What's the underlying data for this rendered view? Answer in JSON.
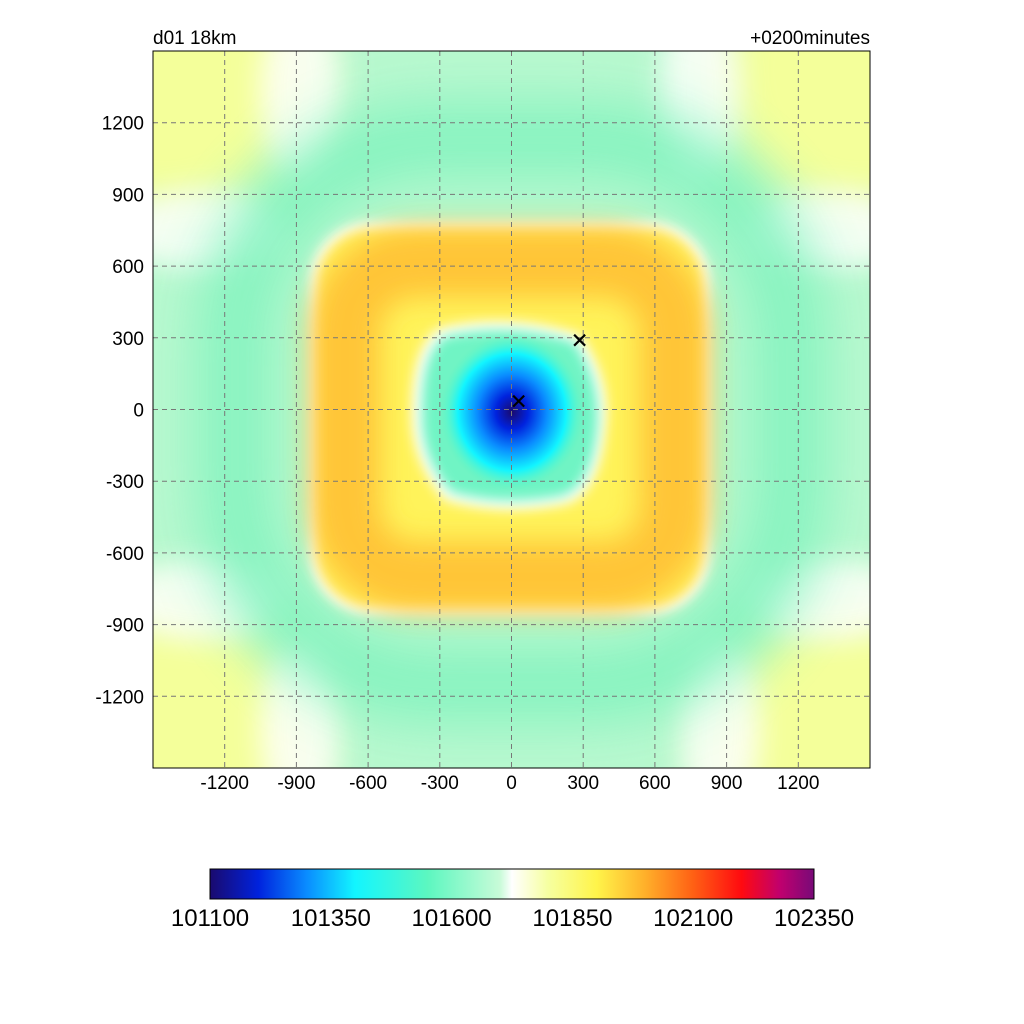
{
  "header": {
    "left_label": "d01 18km",
    "right_label": "+0200minutes"
  },
  "colors": {
    "background": "#ffffff",
    "frame": "#000000",
    "grid": "#777777",
    "marker": "#000000"
  },
  "chart_data": {
    "type": "heatmap",
    "title": "",
    "xlabel": "",
    "ylabel": "",
    "xlim": [
      -1500,
      1500
    ],
    "ylim": [
      -1500,
      1500
    ],
    "grid": true,
    "x_ticks": [
      -1200,
      -900,
      -600,
      -300,
      0,
      300,
      600,
      900,
      1200
    ],
    "y_ticks": [
      1200,
      900,
      600,
      300,
      0,
      -300,
      -600,
      -900,
      -1200
    ],
    "x_tick_labels": [
      "-1200",
      "-900",
      "-600",
      "-300",
      "0",
      "300",
      "600",
      "900",
      "1200"
    ],
    "y_tick_labels": [
      "1200",
      "900",
      "600",
      "300",
      "0",
      "-300",
      "-600",
      "-900",
      "-1200"
    ],
    "field_description_values": {
      "center_min": 101100,
      "inner_disk": 101600,
      "ring_max": 102000,
      "outer_field": 101650,
      "corners": 101850
    },
    "markers": [
      {
        "symbol": "x",
        "x": 30,
        "y": 35
      },
      {
        "symbol": "x",
        "x": 285,
        "y": 290
      }
    ],
    "colorbar": {
      "min": 101100,
      "max": 102350,
      "ticks": [
        101100,
        101350,
        101600,
        101850,
        102100,
        102350
      ],
      "tick_labels": [
        "101100",
        "101350",
        "101600",
        "101850",
        "102100",
        "102350"
      ],
      "colors": [
        {
          "value": 101100,
          "color": "#1a0a6e"
        },
        {
          "value": 101200,
          "color": "#0022dd"
        },
        {
          "value": 101300,
          "color": "#0a8cff"
        },
        {
          "value": 101400,
          "color": "#12f5ff"
        },
        {
          "value": 101550,
          "color": "#5cf7c0"
        },
        {
          "value": 101700,
          "color": "#c8fbd8"
        },
        {
          "value": 101725,
          "color": "#ffffff"
        },
        {
          "value": 101800,
          "color": "#f6ffa0"
        },
        {
          "value": 101900,
          "color": "#fff44a"
        },
        {
          "value": 102000,
          "color": "#ffb02a"
        },
        {
          "value": 102100,
          "color": "#ff6014"
        },
        {
          "value": 102200,
          "color": "#ff0a10"
        },
        {
          "value": 102280,
          "color": "#c0006e"
        },
        {
          "value": 102350,
          "color": "#780a78"
        }
      ]
    }
  }
}
